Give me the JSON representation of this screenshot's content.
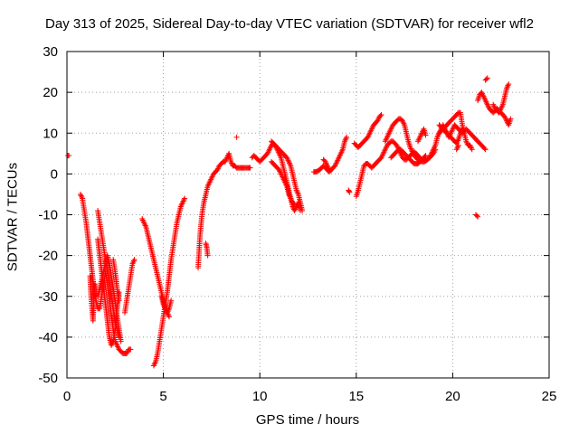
{
  "chart_data": {
    "type": "scatter",
    "title": "Day 313 of 2025, Sidereal Day-to-day VTEC variation (SDTVAR) for receiver wfl2",
    "xlabel": "GPS time / hours",
    "ylabel": "SDTVAR / TECUs",
    "xlim": [
      0,
      25
    ],
    "ylim": [
      -50,
      30
    ],
    "xticks": [
      "0",
      "5",
      "10",
      "15",
      "20",
      "25"
    ],
    "yticks": [
      "30",
      "20",
      "10",
      "0",
      "-10",
      "-20",
      "-30",
      "-40",
      "-50"
    ],
    "grid": true,
    "marker": "+",
    "color": "#ff0000",
    "series": [
      {
        "x": [
          0.05,
          0.1
        ],
        "y": [
          4.5,
          4.5
        ]
      },
      {
        "x": [
          0.7,
          0.8,
          0.9,
          1.0,
          1.1,
          1.2,
          1.3,
          1.4,
          1.5,
          1.6,
          1.7,
          1.8,
          1.9,
          2.0,
          2.1,
          2.2,
          2.3,
          2.4,
          2.5,
          2.6,
          2.7,
          2.8,
          2.9,
          3.0,
          3.1,
          3.2,
          3.3
        ],
        "y": [
          -5,
          -6,
          -9,
          -12,
          -16,
          -20,
          -24,
          -28,
          -31,
          -33,
          -33,
          -30,
          -27,
          -24,
          -27,
          -31,
          -35,
          -38,
          -41,
          -42,
          -43,
          -43.5,
          -44,
          -44,
          -44,
          -43,
          -43
        ]
      },
      {
        "x": [
          1.2,
          1.25,
          1.3,
          1.35,
          1.4,
          1.45
        ],
        "y": [
          -25,
          -30,
          -33,
          -36,
          -31,
          -27
        ]
      },
      {
        "x": [
          1.6,
          1.7,
          1.8,
          1.9,
          2.0,
          2.1,
          2.2,
          2.3,
          2.4,
          2.5,
          2.6,
          2.7
        ],
        "y": [
          -16,
          -20,
          -24,
          -28,
          -32,
          -36,
          -40,
          -42,
          -41,
          -38,
          -33,
          -29
        ]
      },
      {
        "x": [
          1.6,
          1.7,
          1.8,
          1.9,
          2.0,
          2.1,
          2.2,
          2.3,
          2.4,
          2.5,
          2.6,
          2.7,
          2.8
        ],
        "y": [
          -30,
          -28,
          -26,
          -24,
          -22,
          -20,
          -22,
          -25,
          -28,
          -31,
          -35,
          -38,
          -41
        ]
      },
      {
        "x": [
          1.6,
          1.7,
          1.8,
          1.9,
          2.0,
          2.1,
          2.2,
          2.3,
          2.4,
          2.5,
          2.6,
          2.7
        ],
        "y": [
          -9,
          -12,
          -15,
          -18,
          -21,
          -24,
          -27,
          -30,
          -33,
          -36,
          -38,
          -40
        ]
      },
      {
        "x": [
          2.4,
          2.5,
          2.6,
          2.7
        ],
        "y": [
          -21,
          -24,
          -28,
          -31
        ]
      },
      {
        "x": [
          3.0,
          3.1,
          3.2,
          3.3,
          3.4,
          3.5
        ],
        "y": [
          -34,
          -31,
          -28,
          -25,
          -22,
          -21
        ]
      },
      {
        "x": [
          3.9,
          4.0,
          4.1,
          4.2,
          4.3,
          4.4,
          4.5,
          4.6,
          4.7,
          4.8,
          4.9,
          5.0,
          5.1,
          5.2,
          5.3
        ],
        "y": [
          -11,
          -12,
          -13,
          -15,
          -17,
          -19,
          -21,
          -23,
          -25,
          -27,
          -29,
          -31,
          -33,
          -34,
          -35
        ]
      },
      {
        "x": [
          4.5,
          4.6,
          4.7,
          4.8,
          4.9,
          5.0,
          5.1,
          5.2,
          5.3,
          5.4,
          5.5,
          5.6,
          5.7,
          5.8,
          5.9,
          6.0,
          6.1
        ],
        "y": [
          -47,
          -46,
          -44,
          -41,
          -38,
          -35,
          -32,
          -29,
          -25,
          -21,
          -18,
          -15,
          -12,
          -10,
          -8,
          -7,
          -6
        ]
      },
      {
        "x": [
          4.9,
          5.0,
          5.1,
          5.2,
          5.3,
          5.4
        ],
        "y": [
          -30,
          -32,
          -33,
          -34,
          -33,
          -31
        ]
      },
      {
        "x": [
          6.8,
          6.9,
          7.0,
          7.1,
          7.2,
          7.3,
          7.4,
          7.5,
          7.6,
          7.7,
          7.8,
          7.9,
          8.0,
          8.1,
          8.2,
          8.3,
          8.4,
          8.5,
          8.6,
          8.7,
          8.8,
          8.9,
          9.0,
          9.1,
          9.2,
          9.3,
          9.4,
          9.5
        ],
        "y": [
          -23,
          -15,
          -10,
          -7,
          -5,
          -3,
          -2,
          -1,
          0,
          0.5,
          1,
          2,
          2.5,
          3,
          3,
          4,
          5,
          3,
          2,
          2,
          1.5,
          1.5,
          1.5,
          1.5,
          1.5,
          1.5,
          1.5,
          1.5
        ]
      },
      {
        "x": [
          7.2,
          7.25,
          7.3
        ],
        "y": [
          -17,
          -18,
          -20
        ]
      },
      {
        "x": [
          8.8
        ],
        "y": [
          9
        ]
      },
      {
        "x": [
          9.6,
          9.7,
          9.8,
          9.9,
          10.0,
          10.1,
          10.2,
          10.3,
          10.4,
          10.5,
          10.6,
          10.7,
          10.8,
          10.9,
          11.0,
          11.1,
          11.2,
          11.3,
          11.4,
          11.5,
          11.6,
          11.7,
          11.8,
          11.9,
          12.0,
          12.1
        ],
        "y": [
          4,
          4.5,
          4,
          3.5,
          3,
          3.5,
          4,
          4.5,
          5,
          6,
          7,
          7.5,
          7,
          6,
          5,
          4,
          2,
          0,
          -2,
          -4,
          -6,
          -8,
          -9,
          -8,
          -7,
          -9
        ]
      },
      {
        "x": [
          10.6,
          10.7,
          10.8,
          10.9,
          11.0,
          11.1,
          11.2,
          11.3,
          11.4,
          11.5,
          11.6,
          11.7,
          11.8,
          11.9,
          12.0,
          12.1,
          12.2
        ],
        "y": [
          8,
          7.5,
          7,
          6.5,
          6,
          5.5,
          5,
          4.5,
          4,
          3,
          2,
          0,
          -2,
          -4,
          -5,
          -7,
          -9
        ]
      },
      {
        "x": [
          10.6,
          10.7,
          10.8,
          10.9,
          11.0,
          11.1,
          11.2,
          11.3,
          11.4,
          11.5,
          11.6,
          11.7,
          11.8
        ],
        "y": [
          3,
          2.5,
          2,
          1.5,
          1,
          0,
          -1,
          -2,
          -3,
          -5,
          -6,
          -7,
          -7.5
        ]
      },
      {
        "x": [
          12.8,
          12.9,
          13.0,
          13.1,
          13.2,
          13.3,
          13.4,
          13.5,
          13.6,
          13.7,
          13.8,
          13.9,
          14.0,
          14.1,
          14.2,
          14.3,
          14.4,
          14.5
        ],
        "y": [
          0.5,
          0.5,
          0.7,
          1,
          1.5,
          2,
          1.5,
          1,
          0.5,
          1,
          1.5,
          2,
          3,
          4,
          5,
          6,
          8,
          9
        ]
      },
      {
        "x": [
          13.3,
          13.4,
          13.5,
          13.6
        ],
        "y": [
          3.5,
          3,
          2,
          1
        ]
      },
      {
        "x": [
          14.6,
          14.65
        ],
        "y": [
          -4,
          -4.5
        ]
      },
      {
        "x": [
          14.9,
          15.0,
          15.1,
          15.2,
          15.3,
          15.4,
          15.5,
          15.6,
          15.7,
          15.8,
          15.9,
          16.0,
          16.1,
          16.2,
          16.3
        ],
        "y": [
          7.5,
          7,
          6.5,
          7,
          7.5,
          8,
          8.5,
          9,
          10,
          11,
          12,
          12.5,
          13,
          14,
          14.5
        ]
      },
      {
        "x": [
          15.0,
          15.1,
          15.2,
          15.3,
          15.4,
          15.5,
          15.6,
          15.7,
          15.8,
          15.9,
          16.0,
          16.1,
          16.2,
          16.3,
          16.4,
          16.5,
          16.6,
          16.7,
          16.8,
          16.9,
          17.0,
          17.1,
          17.2,
          17.3,
          17.4,
          17.5,
          17.6,
          17.7,
          17.8,
          17.9,
          18.0,
          18.1,
          18.2,
          18.3,
          18.4,
          18.5
        ],
        "y": [
          -5.5,
          -4,
          -2,
          0,
          2,
          2.5,
          2.5,
          2,
          1.5,
          2,
          2.5,
          3,
          3.5,
          4,
          5,
          6,
          7,
          7.5,
          8,
          8,
          7.5,
          7,
          6,
          5,
          4,
          3.5,
          3.5,
          4,
          4.5,
          5,
          5.5,
          5,
          4.5,
          4,
          3.5,
          3.5
        ]
      },
      {
        "x": [
          16.5,
          16.6,
          16.7,
          16.8,
          16.9,
          17.0,
          17.1,
          17.2,
          17.3,
          17.4,
          17.5,
          17.6,
          17.7,
          17.8,
          17.9,
          18.0,
          18.1,
          18.2,
          18.3,
          18.4,
          18.5,
          18.6,
          18.7,
          18.8,
          18.9,
          19.0,
          19.1
        ],
        "y": [
          8,
          9,
          10,
          11,
          12,
          12.5,
          13,
          13.5,
          13.5,
          13,
          12,
          10,
          8,
          6.5,
          5.5,
          4.5,
          4,
          3.5,
          3.2,
          3,
          3,
          3.2,
          3.5,
          4,
          4.5,
          5,
          6
        ]
      },
      {
        "x": [
          16.8,
          16.9,
          17.0,
          17.1,
          17.2,
          17.3,
          17.4,
          17.5,
          17.6,
          17.7,
          17.8,
          17.9,
          18.0,
          18.1,
          18.2,
          18.3,
          18.4,
          18.5,
          18.6
        ],
        "y": [
          4,
          4.5,
          5,
          5.5,
          6,
          6,
          5.5,
          5,
          4.5,
          4,
          3.5,
          3,
          2.5,
          2.5,
          2.5,
          3,
          3.5,
          4,
          4.5
        ]
      },
      {
        "x": [
          18.2,
          18.3,
          18.4,
          18.5,
          18.6
        ],
        "y": [
          8,
          9,
          10,
          11,
          9.5
        ]
      },
      {
        "x": [
          18.8,
          18.9,
          19.0,
          19.1,
          19.2,
          19.3,
          19.4,
          19.5,
          19.6,
          19.7,
          19.8,
          19.9,
          20.0,
          20.1,
          20.2,
          20.3,
          20.4,
          20.5,
          20.6,
          20.7,
          20.8,
          20.9,
          21.0,
          21.1,
          21.2,
          21.3,
          21.4,
          21.5,
          21.6,
          21.7
        ],
        "y": [
          4,
          5,
          6,
          7,
          9,
          10,
          11,
          12,
          11,
          10,
          9,
          10,
          11,
          12,
          11.5,
          11,
          10.5,
          10,
          10.5,
          11,
          10.5,
          10,
          9.5,
          9,
          8.5,
          8,
          7.5,
          7,
          6.5,
          6
        ]
      },
      {
        "x": [
          19.3,
          19.4,
          19.5,
          19.6,
          19.7,
          19.8,
          19.9,
          20.0,
          20.1,
          20.2,
          20.3,
          20.4,
          20.5,
          20.6,
          20.7,
          20.8,
          20.9,
          21.0
        ],
        "y": [
          10,
          10.5,
          11,
          11.5,
          12,
          12.5,
          13,
          13.5,
          14,
          14.5,
          15,
          15,
          12,
          10,
          8,
          7,
          7,
          6
        ]
      },
      {
        "x": [
          19.3,
          19.4,
          19.5,
          19.6,
          19.7,
          19.8,
          19.9,
          20.0,
          20.1,
          20.2,
          20.3,
          20.4,
          20.5
        ],
        "y": [
          12,
          11.5,
          11,
          10.5,
          10,
          9.5,
          9,
          8.5,
          8,
          7.5,
          8.5,
          10,
          11
        ]
      },
      {
        "x": [
          20.2,
          20.3
        ],
        "y": [
          6,
          7
        ]
      },
      {
        "x": [
          21.2,
          21.3
        ],
        "y": [
          -10,
          -10.5
        ]
      },
      {
        "x": [
          21.3,
          21.4,
          21.5,
          21.6,
          21.7,
          21.8,
          21.9,
          22.0,
          22.1,
          22.2,
          22.3,
          22.4,
          22.5,
          22.6,
          22.7,
          22.8,
          22.9,
          23.0
        ],
        "y": [
          18,
          19.5,
          20,
          19,
          18,
          17,
          16,
          15.5,
          15,
          15.5,
          16,
          15.5,
          15,
          14.5,
          14,
          13,
          12,
          13.5
        ]
      },
      {
        "x": [
          21.7,
          21.8
        ],
        "y": [
          23,
          23.5
        ]
      },
      {
        "x": [
          22.1,
          22.2,
          22.3,
          22.4,
          22.5,
          22.6,
          22.7,
          22.8,
          22.9
        ],
        "y": [
          17,
          16,
          15.5,
          15,
          16,
          17,
          19,
          21,
          22
        ]
      }
    ]
  }
}
